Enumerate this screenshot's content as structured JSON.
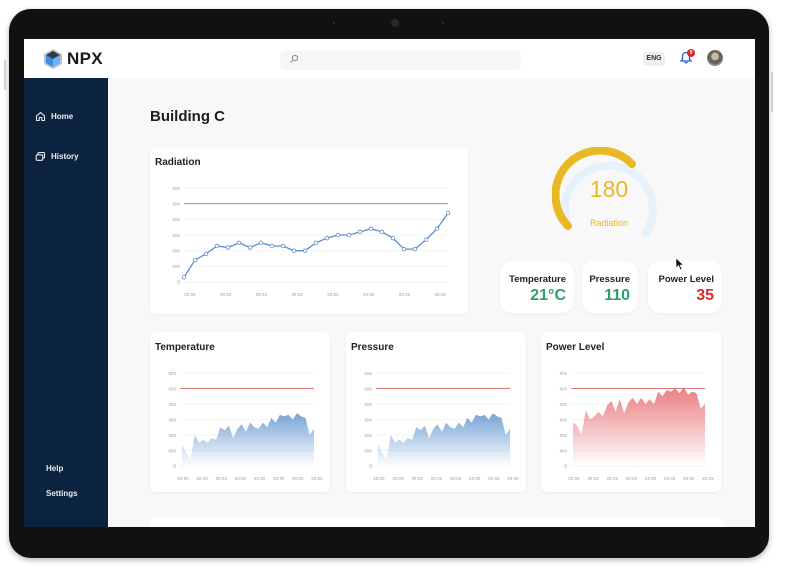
{
  "app": {
    "logo_text": "NPX",
    "search": {
      "placeholder": ""
    },
    "language": "ENG",
    "notifications_count": "9"
  },
  "sidebar": {
    "items": [
      {
        "label": "Home",
        "icon": "home-icon"
      },
      {
        "label": "History",
        "icon": "history-icon"
      }
    ],
    "bottom_items": [
      {
        "label": "Help"
      },
      {
        "label": "Settings"
      }
    ]
  },
  "page": {
    "title": "Building C"
  },
  "gauge": {
    "value": "180",
    "label": "Radiation",
    "color": "#e8b923",
    "track_color": "#e6f1fb"
  },
  "stats": [
    {
      "label": "Temperature",
      "value": "21°C",
      "color": "#2e9e6a"
    },
    {
      "label": "Pressure",
      "value": "110",
      "color": "#2e9e6a"
    },
    {
      "label": "Power Level",
      "value": "35",
      "color": "#d92d2d"
    }
  ],
  "charts": {
    "radiation": {
      "title": "Radiation"
    },
    "temperature": {
      "title": "Temperature"
    },
    "pressure": {
      "title": "Pressure"
    },
    "power": {
      "title": "Power Level"
    }
  },
  "chart_data": [
    {
      "type": "line",
      "title": "Radiation",
      "xlabel": "",
      "ylabel": "",
      "y_tick_labels": [
        "0",
        "xxx",
        "xxx",
        "xxx",
        "xxx",
        "xxx",
        "xxx"
      ],
      "x_tick_labels": [
        "xx:xx",
        "xx:xx",
        "xx:xx",
        "xx:xx",
        "xx:xx",
        "xx:xx",
        "xx:xx",
        "xx:xx"
      ],
      "threshold": 5,
      "ylim": [
        0,
        6
      ],
      "grid": true,
      "series": [
        {
          "name": "Radiation",
          "color": "#5b8fc7",
          "values": [
            0.3,
            1.4,
            1.8,
            2.3,
            2.2,
            2.5,
            2.2,
            2.5,
            2.3,
            2.3,
            2.0,
            2.0,
            2.5,
            2.8,
            3.0,
            3.0,
            3.2,
            3.4,
            3.2,
            2.8,
            2.1,
            2.1,
            2.7,
            3.4,
            4.4
          ]
        },
        {
          "name": "Threshold",
          "color": "#d9796f",
          "values": [
            5,
            5
          ]
        }
      ]
    },
    {
      "type": "area",
      "title": "Temperature",
      "y_tick_labels": [
        "0",
        "xxx",
        "xxx",
        "xxx",
        "xxx",
        "xxx",
        "xxx"
      ],
      "x_tick_labels": [
        "xx:xx",
        "xx:xx",
        "xx:xx",
        "xx:xx",
        "xx:xx",
        "xx:xx",
        "xx:xx",
        "xx:xx"
      ],
      "threshold": 5,
      "ylim": [
        0,
        6
      ],
      "series": [
        {
          "name": "Temperature",
          "color": "#6f9fd3",
          "values": [
            1.4,
            0.8,
            0.4,
            2.0,
            1.5,
            1.7,
            1.5,
            1.8,
            1.7,
            2.5,
            2.3,
            2.6,
            1.8,
            2.4,
            2.7,
            2.2,
            2.8,
            2.5,
            2.4,
            2.8,
            2.5,
            3.1,
            2.8,
            3.3,
            3.2,
            3.3,
            3.0,
            3.4,
            3.2,
            3.1,
            2.0,
            2.4
          ]
        }
      ]
    },
    {
      "type": "area",
      "title": "Pressure",
      "y_tick_labels": [
        "0",
        "xxx",
        "xxx",
        "xxx",
        "xxx",
        "xxx",
        "xxx"
      ],
      "x_tick_labels": [
        "xx:xx",
        "xx:xx",
        "xx:xx",
        "xx:xx",
        "xx:xx",
        "xx:xx",
        "xx:xx",
        "xx:xx"
      ],
      "threshold": 5,
      "ylim": [
        0,
        6
      ],
      "series": [
        {
          "name": "Pressure",
          "color": "#6f9fd3",
          "values": [
            1.4,
            0.8,
            0.4,
            2.0,
            1.5,
            1.7,
            1.5,
            1.8,
            1.7,
            2.5,
            2.3,
            2.6,
            1.8,
            2.4,
            2.7,
            2.2,
            2.8,
            2.5,
            2.4,
            2.8,
            2.5,
            3.1,
            2.8,
            3.3,
            3.2,
            3.3,
            3.0,
            3.4,
            3.2,
            3.1,
            2.0,
            2.4
          ]
        }
      ]
    },
    {
      "type": "area",
      "title": "Power Level",
      "y_tick_labels": [
        "0",
        "xxx",
        "xxx",
        "xxx",
        "xxx",
        "xxx",
        "xxx"
      ],
      "x_tick_labels": [
        "xx:xx",
        "xx:xx",
        "xx:xx",
        "xx:xx",
        "xx:xx",
        "xx:xx",
        "xx:xx",
        "xx:xx"
      ],
      "threshold": 5,
      "ylim": [
        0,
        6
      ],
      "series": [
        {
          "name": "Power Level",
          "color": "#e8767a",
          "values": [
            2.8,
            2.6,
            2.0,
            3.6,
            3.0,
            3.2,
            3.5,
            3.2,
            3.9,
            4.2,
            3.5,
            4.3,
            3.4,
            4.1,
            4.4,
            4.0,
            4.4,
            4.0,
            4.3,
            4.0,
            4.8,
            4.5,
            4.9,
            4.8,
            5.0,
            4.7,
            5.1,
            4.6,
            4.8,
            4.7,
            3.7,
            4.0
          ]
        }
      ]
    }
  ]
}
